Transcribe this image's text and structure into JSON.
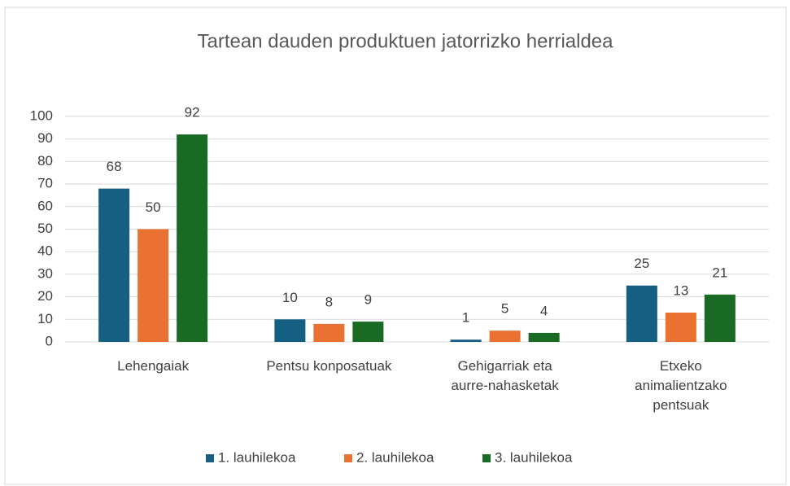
{
  "chart_data": {
    "type": "bar",
    "title": "Tartean dauden produktuen jatorrizko herrialdea",
    "categories": [
      "Lehengaiak",
      "Pentsu konposatuak",
      "Gehigarriak eta aurre-nahasketak",
      "Etxeko animalientzako pentsuak"
    ],
    "series": [
      {
        "name": "1. lauhilekoa",
        "color": "#156082",
        "values": [
          68,
          10,
          1,
          25
        ]
      },
      {
        "name": "2. lauhilekoa",
        "color": "#e97132",
        "values": [
          50,
          8,
          5,
          13
        ]
      },
      {
        "name": "3. lauhilekoa",
        "color": "#196b24",
        "values": [
          92,
          9,
          4,
          21
        ]
      }
    ],
    "ylim": [
      0,
      100
    ],
    "yticks": [
      0,
      10,
      20,
      30,
      40,
      50,
      60,
      70,
      80,
      90,
      100
    ],
    "grid": true,
    "legend": "bottom"
  }
}
